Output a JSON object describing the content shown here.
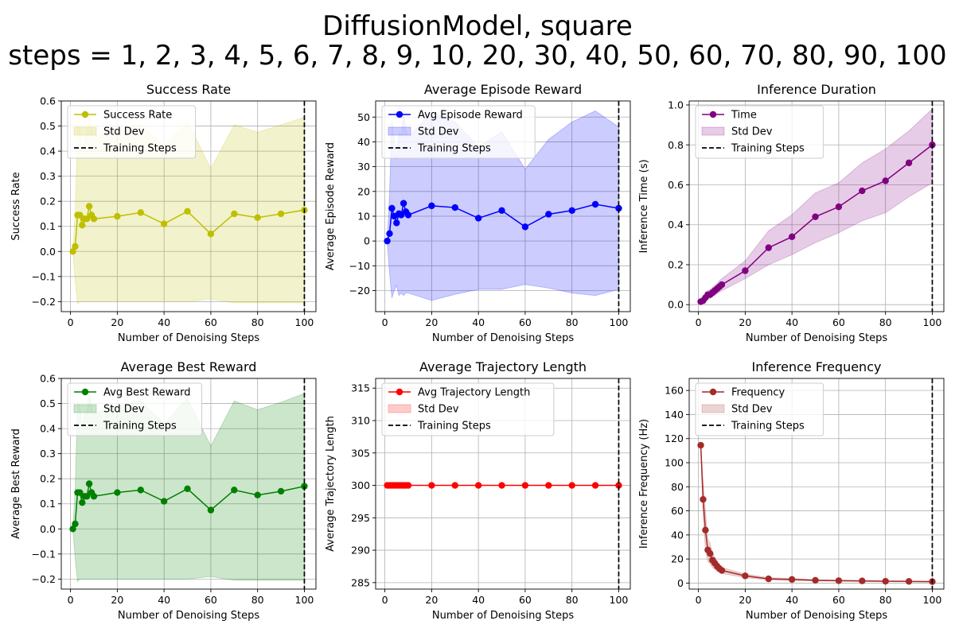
{
  "figure": {
    "title_line1": "DiffusionModel, square",
    "title_line2": "steps = 1, 2, 3, 4, 5, 6, 7, 8, 9, 10, 20, 30, 40, 50, 60, 70, 80, 90, 100"
  },
  "chart_data": [
    {
      "type": "line",
      "title": "Success Rate",
      "xlabel": "Number of Denoising Steps",
      "ylabel": "Success Rate",
      "xlim": [
        -3.95,
        104.95
      ],
      "ylim": [
        -0.24,
        0.6
      ],
      "xticks": [
        0,
        20,
        40,
        60,
        80,
        100
      ],
      "yticks": [
        -0.2,
        -0.1,
        0.0,
        0.1,
        0.2,
        0.3,
        0.4,
        0.5,
        0.6
      ],
      "ytick_labels": [
        "−0.2",
        "−0.1",
        "0.0",
        "0.1",
        "0.2",
        "0.3",
        "0.4",
        "0.5",
        "0.6"
      ],
      "grid": true,
      "legend_position": "upper-left",
      "vline_x": 100,
      "color": "#bfbf00",
      "band_color": "#bfbf00",
      "x": [
        1,
        2,
        3,
        4,
        5,
        6,
        7,
        8,
        9,
        10,
        20,
        30,
        40,
        50,
        60,
        70,
        80,
        90,
        100
      ],
      "y": [
        0.0,
        0.02,
        0.145,
        0.145,
        0.105,
        0.13,
        0.13,
        0.18,
        0.145,
        0.13,
        0.14,
        0.155,
        0.11,
        0.16,
        0.07,
        0.15,
        0.135,
        0.15,
        0.165
      ],
      "lower": [
        0.0,
        -0.12,
        -0.21,
        -0.2,
        -0.2,
        -0.2,
        -0.2,
        -0.2,
        -0.2,
        -0.2,
        -0.2,
        -0.2,
        -0.2,
        -0.2,
        -0.19,
        -0.205,
        -0.205,
        -0.205,
        -0.205
      ],
      "upper": [
        0.0,
        0.16,
        0.5,
        0.49,
        0.41,
        0.46,
        0.46,
        0.56,
        0.49,
        0.46,
        0.48,
        0.51,
        0.42,
        0.52,
        0.33,
        0.505,
        0.475,
        0.505,
        0.535
      ],
      "legend": [
        "Success Rate",
        "Std Dev",
        "Training Steps"
      ]
    },
    {
      "type": "line",
      "title": "Average Episode Reward",
      "xlabel": "Number of Denoising Steps",
      "ylabel": "Average Episode Reward",
      "xlim": [
        -3.95,
        104.95
      ],
      "ylim": [
        -28.5,
        56.5
      ],
      "xticks": [
        0,
        20,
        40,
        60,
        80,
        100
      ],
      "yticks": [
        -20,
        -10,
        0,
        10,
        20,
        30,
        40,
        50
      ],
      "ytick_labels": [
        "−20",
        "−10",
        "0",
        "10",
        "20",
        "30",
        "40",
        "50"
      ],
      "grid": true,
      "legend_position": "upper-left",
      "vline_x": 100,
      "color": "#0000ff",
      "band_color": "#0000ff",
      "x": [
        1,
        2,
        3,
        4,
        5,
        6,
        7,
        8,
        9,
        10,
        20,
        30,
        40,
        50,
        60,
        70,
        80,
        90,
        100
      ],
      "y": [
        0.0,
        3.0,
        13.2,
        10.0,
        7.3,
        11.0,
        10.5,
        15.2,
        11.8,
        10.5,
        14.2,
        13.5,
        9.2,
        12.3,
        5.7,
        10.8,
        12.3,
        14.8,
        13.2
      ],
      "lower": [
        0.0,
        -13.0,
        -23.0,
        -20.0,
        -18.0,
        -22.0,
        -21.0,
        -22.0,
        -21.0,
        -21.0,
        -24.0,
        -21.5,
        -19.5,
        -19.5,
        -17.5,
        -19.0,
        -21.0,
        -22.0,
        -19.5
      ],
      "upper": [
        0.0,
        19.0,
        49.0,
        40.0,
        33.0,
        44.0,
        42.0,
        52.0,
        45.0,
        42.0,
        52.0,
        48.0,
        38.0,
        44.0,
        29.0,
        41.0,
        48.0,
        52.5,
        46.0
      ],
      "legend": [
        "Avg Episode Reward",
        "Std Dev",
        "Training Steps"
      ]
    },
    {
      "type": "line",
      "title": "Inference Duration",
      "xlabel": "Number of Denoising Steps",
      "ylabel": "Inference Time (s)",
      "xlim": [
        -3.95,
        104.95
      ],
      "ylim": [
        -0.035,
        1.02
      ],
      "xticks": [
        0,
        20,
        40,
        60,
        80,
        100
      ],
      "yticks": [
        0.0,
        0.2,
        0.4,
        0.6,
        0.8,
        1.0
      ],
      "ytick_labels": [
        "0.0",
        "0.2",
        "0.4",
        "0.6",
        "0.8",
        "1.0"
      ],
      "grid": true,
      "legend_position": "upper-left",
      "vline_x": 100,
      "color": "#800080",
      "band_color": "#800080",
      "x": [
        1,
        2,
        3,
        4,
        5,
        6,
        7,
        8,
        9,
        10,
        20,
        30,
        40,
        50,
        60,
        70,
        80,
        90,
        100
      ],
      "y": [
        0.015,
        0.02,
        0.035,
        0.05,
        0.05,
        0.06,
        0.07,
        0.08,
        0.09,
        0.1,
        0.17,
        0.285,
        0.34,
        0.44,
        0.49,
        0.57,
        0.62,
        0.71,
        0.8
      ],
      "lower": [
        0.01,
        0.013,
        0.02,
        0.03,
        0.032,
        0.04,
        0.048,
        0.055,
        0.063,
        0.07,
        0.13,
        0.2,
        0.25,
        0.31,
        0.36,
        0.42,
        0.46,
        0.54,
        0.61
      ],
      "upper": [
        0.02,
        0.03,
        0.05,
        0.07,
        0.075,
        0.085,
        0.095,
        0.105,
        0.12,
        0.13,
        0.22,
        0.37,
        0.45,
        0.56,
        0.61,
        0.71,
        0.78,
        0.87,
        0.98
      ],
      "legend": [
        "Time",
        "Std Dev",
        "Training Steps"
      ]
    },
    {
      "type": "line",
      "title": "Average Best Reward",
      "xlabel": "Number of Denoising Steps",
      "ylabel": "Average Best Reward",
      "xlim": [
        -3.95,
        104.95
      ],
      "ylim": [
        -0.24,
        0.6
      ],
      "xticks": [
        0,
        20,
        40,
        60,
        80,
        100
      ],
      "yticks": [
        -0.2,
        -0.1,
        0.0,
        0.1,
        0.2,
        0.3,
        0.4,
        0.5,
        0.6
      ],
      "ytick_labels": [
        "−0.2",
        "−0.1",
        "0.0",
        "0.1",
        "0.2",
        "0.3",
        "0.4",
        "0.5",
        "0.6"
      ],
      "grid": true,
      "legend_position": "upper-left",
      "vline_x": 100,
      "color": "#008000",
      "band_color": "#008000",
      "x": [
        1,
        2,
        3,
        4,
        5,
        6,
        7,
        8,
        9,
        10,
        20,
        30,
        40,
        50,
        60,
        70,
        80,
        90,
        100
      ],
      "y": [
        0.0,
        0.02,
        0.145,
        0.145,
        0.105,
        0.13,
        0.13,
        0.18,
        0.145,
        0.13,
        0.145,
        0.155,
        0.11,
        0.16,
        0.075,
        0.155,
        0.135,
        0.15,
        0.17
      ],
      "lower": [
        0.0,
        -0.12,
        -0.21,
        -0.2,
        -0.2,
        -0.2,
        -0.2,
        -0.2,
        -0.2,
        -0.2,
        -0.2,
        -0.2,
        -0.2,
        -0.2,
        -0.19,
        -0.205,
        -0.205,
        -0.205,
        -0.205
      ],
      "upper": [
        0.0,
        0.16,
        0.5,
        0.49,
        0.41,
        0.46,
        0.46,
        0.56,
        0.49,
        0.46,
        0.49,
        0.51,
        0.42,
        0.52,
        0.33,
        0.51,
        0.475,
        0.505,
        0.54
      ],
      "legend": [
        "Avg Best Reward",
        "Std Dev",
        "Training Steps"
      ]
    },
    {
      "type": "line",
      "title": "Average Trajectory Length",
      "xlabel": "Number of Denoising Steps",
      "ylabel": "Average Trajectory Length",
      "xlim": [
        -3.95,
        104.95
      ],
      "ylim": [
        284,
        316.5
      ],
      "xticks": [
        0,
        20,
        40,
        60,
        80,
        100
      ],
      "yticks": [
        285,
        290,
        295,
        300,
        305,
        310,
        315
      ],
      "ytick_labels": [
        "285",
        "290",
        "295",
        "300",
        "305",
        "310",
        "315"
      ],
      "grid": true,
      "legend_position": "upper-left",
      "vline_x": 100,
      "color": "#ff0000",
      "band_color": "#ff0000",
      "x": [
        1,
        2,
        3,
        4,
        5,
        6,
        7,
        8,
        9,
        10,
        20,
        30,
        40,
        50,
        60,
        70,
        80,
        90,
        100
      ],
      "y": [
        300,
        300,
        300,
        300,
        300,
        300,
        300,
        300,
        300,
        300,
        300,
        300,
        300,
        300,
        300,
        300,
        300,
        300,
        300
      ],
      "lower": [
        300,
        300,
        300,
        300,
        300,
        300,
        300,
        300,
        300,
        300,
        300,
        300,
        300,
        300,
        300,
        300,
        300,
        300,
        300
      ],
      "upper": [
        300,
        300,
        300,
        300,
        300,
        300,
        300,
        300,
        300,
        300,
        300,
        300,
        300,
        300,
        300,
        300,
        300,
        300,
        300
      ],
      "legend": [
        "Avg Trajectory Length",
        "Std Dev",
        "Training Steps"
      ]
    },
    {
      "type": "line",
      "title": "Inference Frequency",
      "xlabel": "Number of Denoising Steps",
      "ylabel": "Inference Frequency (Hz)",
      "xlim": [
        -3.95,
        104.95
      ],
      "ylim": [
        -5,
        170
      ],
      "xticks": [
        0,
        20,
        40,
        60,
        80,
        100
      ],
      "yticks": [
        0,
        20,
        40,
        60,
        80,
        100,
        120,
        140,
        160
      ],
      "ytick_labels": [
        "0",
        "20",
        "40",
        "60",
        "80",
        "100",
        "120",
        "140",
        "160"
      ],
      "grid": true,
      "legend_position": "upper-left",
      "vline_x": 100,
      "color": "#a52a2a",
      "band_color": "#a52a2a",
      "x": [
        1,
        2,
        3,
        4,
        5,
        6,
        7,
        8,
        9,
        10,
        20,
        30,
        40,
        50,
        60,
        70,
        80,
        90,
        100
      ],
      "y": [
        114.5,
        69.5,
        44.0,
        27.5,
        24.5,
        19.0,
        16.5,
        14.0,
        12.0,
        10.5,
        6.0,
        3.5,
        3.0,
        2.3,
        2.0,
        1.8,
        1.5,
        1.4,
        1.2
      ],
      "lower": [
        114.5,
        55.0,
        28.0,
        18.0,
        16.0,
        13.0,
        11.5,
        10.0,
        9.0,
        8.0,
        4.5,
        2.6,
        2.2,
        1.8,
        1.5,
        1.4,
        1.2,
        1.1,
        1.0
      ],
      "upper": [
        114.5,
        84.0,
        60.0,
        37.0,
        33.0,
        25.0,
        21.5,
        18.0,
        15.0,
        13.0,
        7.5,
        4.5,
        3.8,
        2.8,
        2.5,
        2.2,
        1.8,
        1.7,
        1.5
      ],
      "legend": [
        "Frequency",
        "Std Dev",
        "Training Steps"
      ]
    }
  ]
}
